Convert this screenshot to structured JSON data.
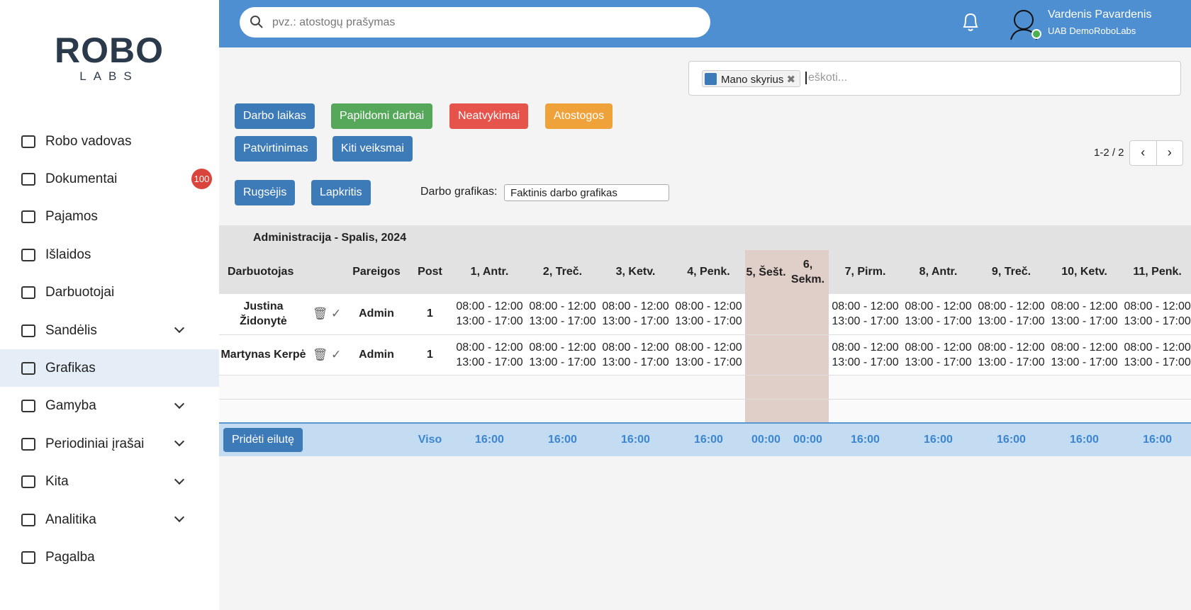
{
  "sidebar": {
    "logo_top": "ROBO",
    "logo_bottom": "LABS",
    "nav": [
      {
        "label": "Robo vadovas"
      },
      {
        "label": "Dokumentai",
        "badge": "100"
      },
      {
        "label": "Pajamos"
      },
      {
        "label": "Išlaidos"
      },
      {
        "label": "Darbuotojai"
      },
      {
        "label": "Sandėlis",
        "expand": true
      },
      {
        "label": "Grafikas",
        "active": true
      },
      {
        "label": "Gamyba",
        "expand": true
      },
      {
        "label": "Periodiniai įrašai",
        "expand": true
      },
      {
        "label": "Kita",
        "expand": true
      },
      {
        "label": "Analitika",
        "expand": true
      },
      {
        "label": "Pagalba"
      }
    ]
  },
  "header": {
    "search_placeholder": "pvz.: atostogų prašymas",
    "user_name": "Vardenis Pavardenis",
    "company": "UAB DemoRoboLabs"
  },
  "filter": {
    "tag": "Mano skyrius",
    "placeholder": "eškoti..."
  },
  "buttons": {
    "row1": [
      "Darbo laikas",
      "Papildomi darbai",
      "Neatvykimai",
      "Atostogos"
    ],
    "row2": [
      "Patvirtinimas",
      "Kiti veiksmai"
    ],
    "prev_month": "Rugsėjis",
    "next_month": "Lapkritis",
    "add_row": "Pridėti eilutę"
  },
  "pagination": "1-2 / 2",
  "schedule": {
    "label": "Darbo grafikas:",
    "value": "Faktinis darbo grafikas"
  },
  "table": {
    "title": "Administracija - Spalis, 2024",
    "headers": [
      "Darbuotojas",
      "Pareigos",
      "Post"
    ],
    "days": [
      "1, Antr.",
      "2, Treč.",
      "3, Ketv.",
      "4, Penk.",
      "5, Šešt.",
      "6, Sekm.",
      "7, Pirm.",
      "8, Antr.",
      "9, Treč.",
      "10, Ketv.",
      "11, Penk."
    ],
    "weekend": [
      false,
      false,
      false,
      false,
      true,
      true,
      false,
      false,
      false,
      false,
      false
    ],
    "rows": [
      {
        "name": "Justina Židonytė",
        "position": "Admin",
        "post": "1",
        "cells": [
          [
            "08:00 - 12:00",
            "13:00 - 17:00"
          ],
          [
            "08:00 - 12:00",
            "13:00 - 17:00"
          ],
          [
            "08:00 - 12:00",
            "13:00 - 17:00"
          ],
          [
            "08:00 - 12:00",
            "13:00 - 17:00"
          ],
          null,
          null,
          [
            "08:00 - 12:00",
            "13:00 - 17:00"
          ],
          [
            "08:00 - 12:00",
            "13:00 - 17:00"
          ],
          [
            "08:00 - 12:00",
            "13:00 - 17:00"
          ],
          [
            "08:00 - 12:00",
            "13:00 - 17:00"
          ],
          [
            "08:00 - 12:00",
            "13:00 - 17:00"
          ]
        ]
      },
      {
        "name": "Martynas Kerpė",
        "position": "Admin",
        "post": "1",
        "cells": [
          [
            "08:00 - 12:00",
            "13:00 - 17:00"
          ],
          [
            "08:00 - 12:00",
            "13:00 - 17:00"
          ],
          [
            "08:00 - 12:00",
            "13:00 - 17:00"
          ],
          [
            "08:00 - 12:00",
            "13:00 - 17:00"
          ],
          null,
          null,
          [
            "08:00 - 12:00",
            "13:00 - 17:00"
          ],
          [
            "08:00 - 12:00",
            "13:00 - 17:00"
          ],
          [
            "08:00 - 12:00",
            "13:00 - 17:00"
          ],
          [
            "08:00 - 12:00",
            "13:00 - 17:00"
          ],
          [
            "08:00 - 12:00",
            "13:00 - 17:00"
          ]
        ]
      }
    ],
    "total_label": "Viso",
    "totals": [
      "16:00",
      "16:00",
      "16:00",
      "16:00",
      "00:00",
      "00:00",
      "16:00",
      "16:00",
      "16:00",
      "16:00",
      "16:00"
    ]
  }
}
